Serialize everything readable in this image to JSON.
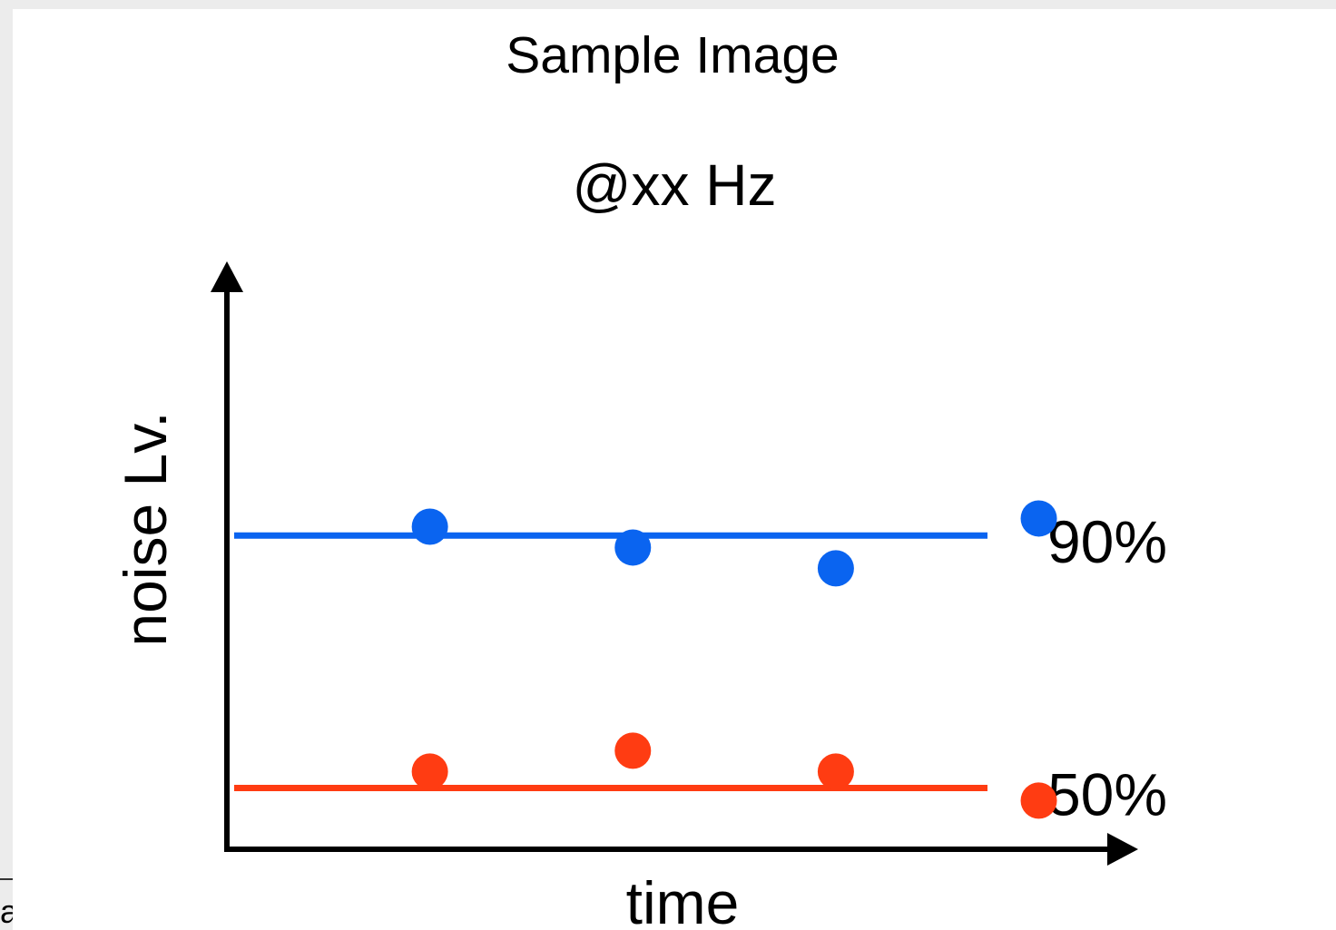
{
  "chart_data": {
    "type": "scatter",
    "title": "Sample Image",
    "subtitle": "@xx Hz",
    "xlabel": "time",
    "ylabel": "noise Lv.",
    "grid": false,
    "x": [
      1,
      2,
      3,
      4
    ],
    "series": [
      {
        "name": "90%",
        "color": "#0a64f0",
        "reference_level": 90,
        "values": [
          91.4,
          88.1,
          84.8,
          92.7
        ]
      },
      {
        "name": "50%",
        "color": "#ff3c12",
        "reference_level": 50,
        "values": [
          52.6,
          55.9,
          52.6,
          48.0
        ]
      }
    ],
    "xlim": [
      0,
      5.5
    ],
    "ylim": [
      40,
      130
    ]
  },
  "edge_fragment": "a"
}
